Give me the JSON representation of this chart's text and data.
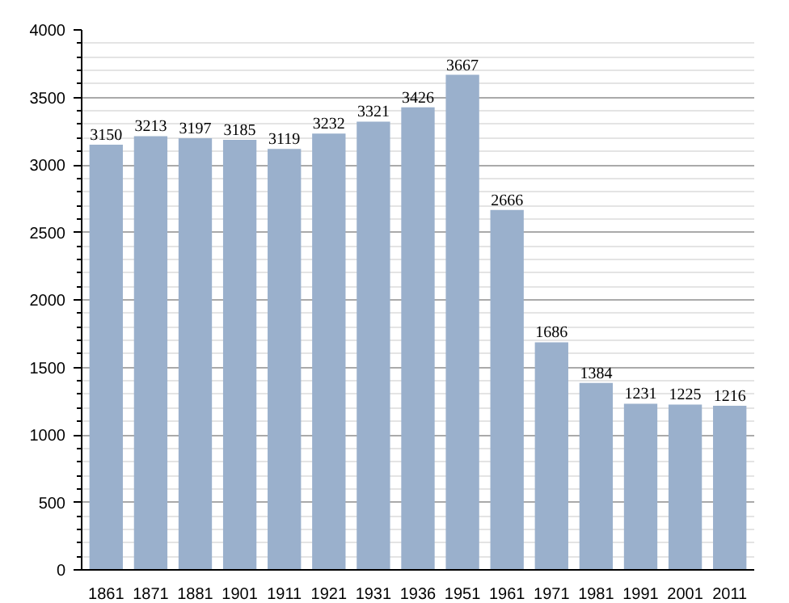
{
  "chart_data": {
    "type": "bar",
    "categories": [
      "1861",
      "1871",
      "1881",
      "1901",
      "1911",
      "1921",
      "1931",
      "1936",
      "1951",
      "1961",
      "1971",
      "1981",
      "1991",
      "2001",
      "2011"
    ],
    "values": [
      3150,
      3213,
      3197,
      3185,
      3119,
      3232,
      3321,
      3426,
      3667,
      2666,
      1686,
      1384,
      1231,
      1225,
      1216
    ],
    "color": "#9ab0cc",
    "ylim": [
      0,
      4000
    ],
    "yticks": [
      0,
      500,
      1000,
      1500,
      2000,
      2500,
      3000,
      3500,
      4000
    ],
    "grid": "y",
    "data_labels": true
  }
}
